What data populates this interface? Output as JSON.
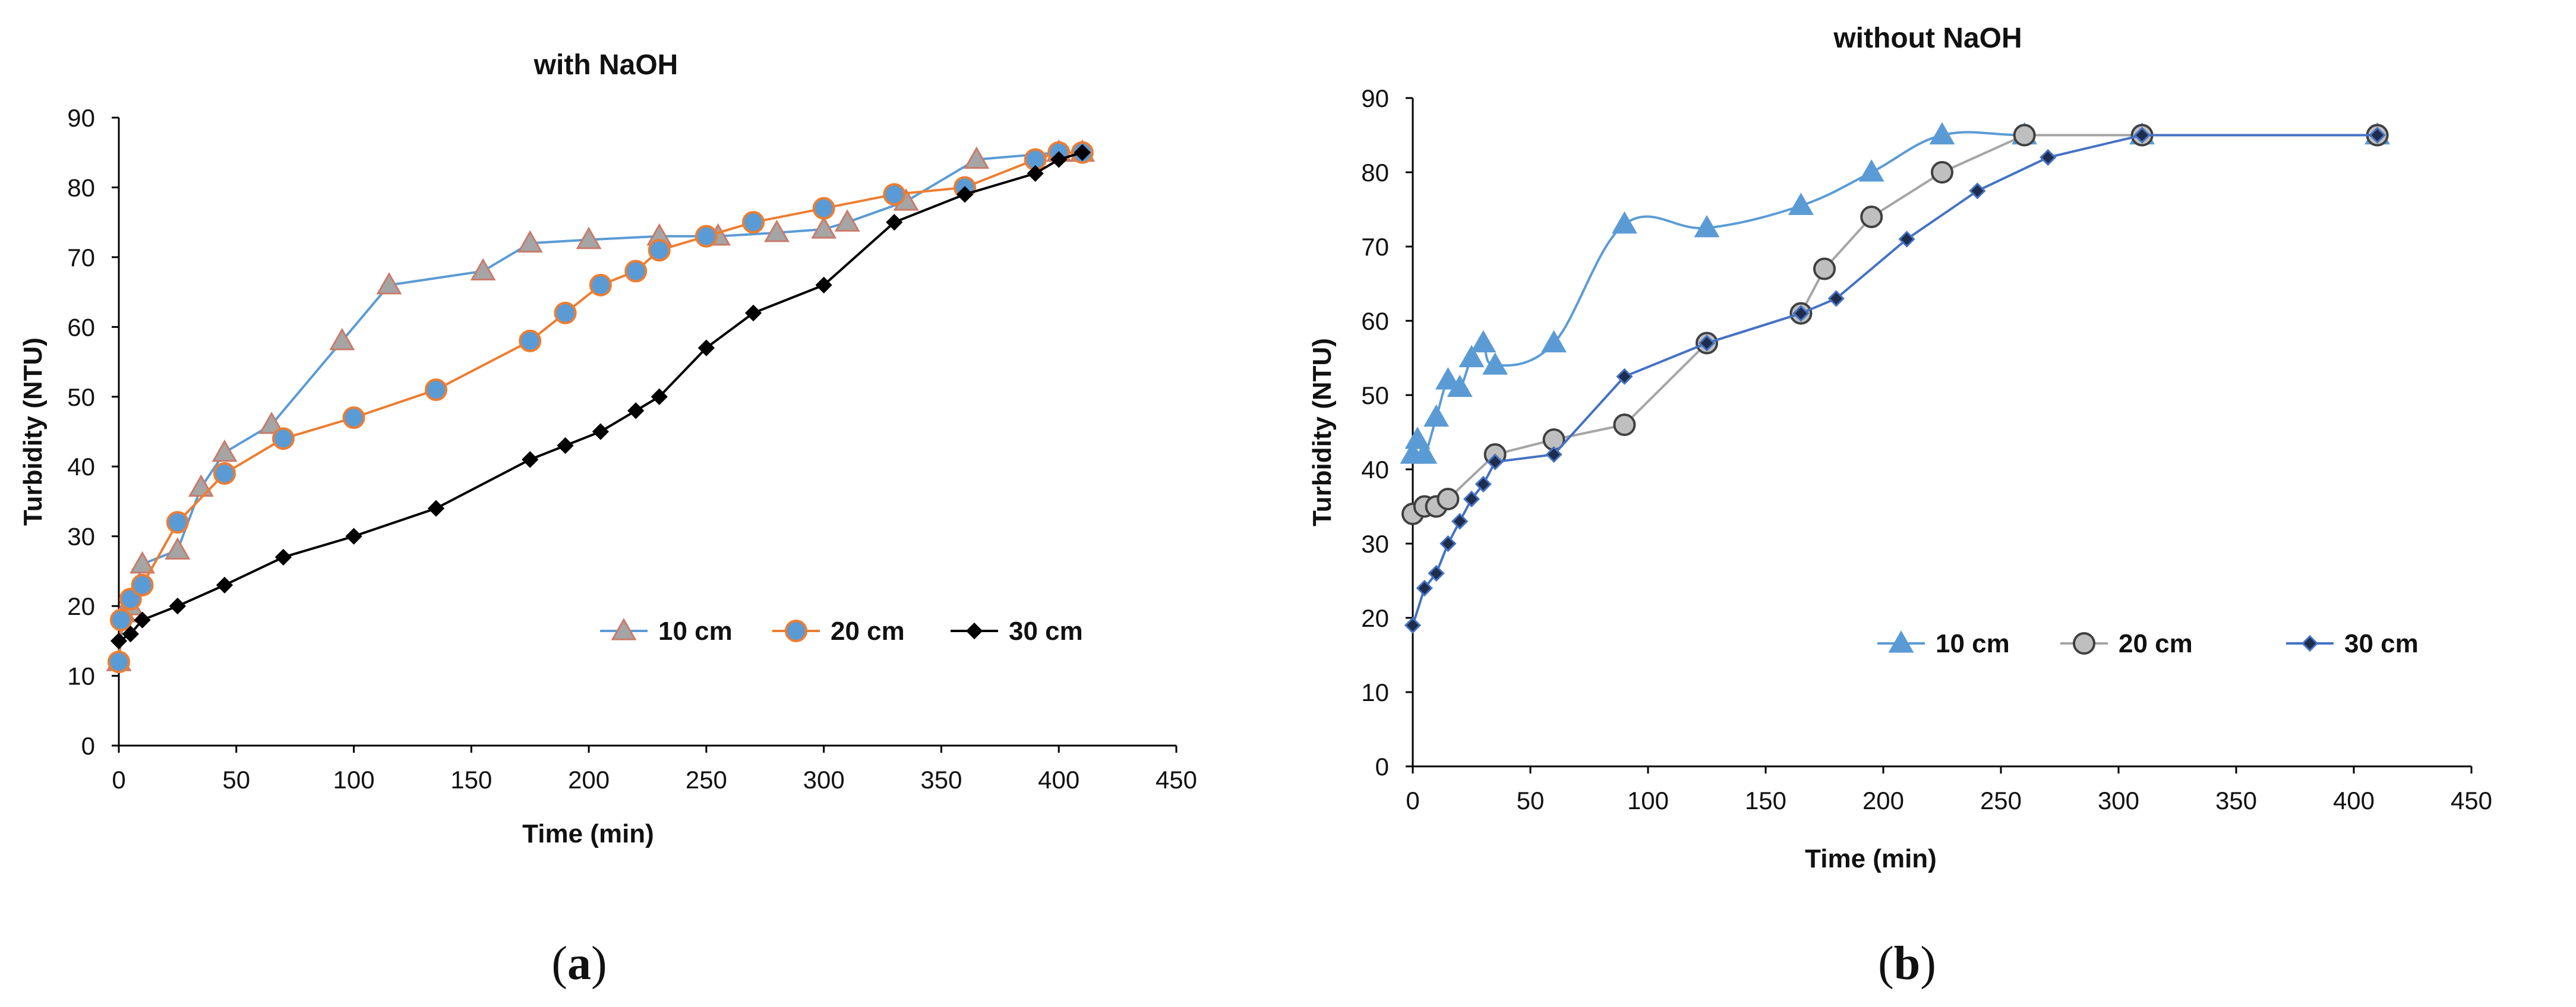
{
  "chart_data": [
    {
      "type": "line",
      "title": "with NaOH",
      "xlabel": "Time (min)",
      "ylabel": "Turbidity (NTU)",
      "xlim": [
        0,
        450
      ],
      "ylim": [
        0,
        90
      ],
      "xticks": [
        0,
        50,
        100,
        150,
        200,
        250,
        300,
        350,
        400,
        450
      ],
      "yticks": [
        0,
        10,
        20,
        30,
        40,
        50,
        60,
        70,
        80,
        90
      ],
      "grid": false,
      "legend": "inside-right",
      "caption_open": "(",
      "caption_letter": "a",
      "caption_close": ")",
      "series": [
        {
          "name": "10 cm",
          "marker": "triangle",
          "line_color": "#5b9bd5",
          "marker_color": "#a5a5a5",
          "marker_edge": "#c97b6b",
          "x": [
            0,
            2,
            5,
            10,
            25,
            35,
            45,
            65,
            95,
            115,
            155,
            175,
            200,
            230,
            255,
            280,
            300,
            310,
            335,
            365,
            400,
            410
          ],
          "y": [
            12,
            19,
            20,
            26,
            28,
            37,
            42,
            46,
            58,
            66,
            68,
            72,
            72.5,
            73,
            73,
            73.5,
            74,
            75,
            78,
            84,
            85,
            85
          ]
        },
        {
          "name": "20 cm",
          "marker": "circle",
          "line_color": "#ed7d31",
          "marker_color": "#5b9bd5",
          "marker_edge": "#ed7d31",
          "x": [
            0,
            1,
            5,
            10,
            25,
            45,
            70,
            100,
            135,
            175,
            190,
            205,
            220,
            230,
            250,
            270,
            300,
            330,
            360,
            390,
            400,
            410
          ],
          "y": [
            12,
            18,
            21,
            23,
            32,
            39,
            44,
            47,
            51,
            58,
            62,
            66,
            68,
            71,
            73,
            75,
            77,
            79,
            80,
            84,
            85,
            85
          ]
        },
        {
          "name": "30 cm",
          "marker": "diamond",
          "line_color": "#000000",
          "marker_color": "#000000",
          "marker_edge": "#000000",
          "x": [
            0,
            5,
            10,
            25,
            45,
            70,
            100,
            135,
            175,
            190,
            205,
            220,
            230,
            250,
            270,
            300,
            330,
            360,
            390,
            400,
            410
          ],
          "y": [
            15,
            16,
            18,
            20,
            23,
            27,
            30,
            34,
            41,
            43,
            45,
            48,
            50,
            57,
            62,
            66,
            75,
            79,
            82,
            84,
            85
          ]
        }
      ]
    },
    {
      "type": "line",
      "title": "without NaOH",
      "xlabel": "Time (min)",
      "ylabel": "Turbidity (NTU)",
      "xlim": [
        0,
        450
      ],
      "ylim": [
        0,
        90
      ],
      "xticks": [
        0,
        50,
        100,
        150,
        200,
        250,
        300,
        350,
        400,
        450
      ],
      "yticks": [
        0,
        10,
        20,
        30,
        40,
        50,
        60,
        70,
        80,
        90
      ],
      "grid": false,
      "legend": "bottom-inside",
      "caption_open": "(",
      "caption_letter": "b",
      "caption_close": ")",
      "series": [
        {
          "name": "10 cm",
          "marker": "triangle",
          "line_color": "#5b9bd5",
          "marker_color": "#5b9bd5",
          "marker_edge": "#5b9bd5",
          "smooth": true,
          "x": [
            0,
            2,
            5,
            10,
            15,
            20,
            25,
            30,
            35,
            60,
            90,
            125,
            165,
            195,
            225,
            260,
            310,
            410
          ],
          "y": [
            42,
            44,
            42,
            47,
            52,
            51,
            55,
            57,
            54,
            57,
            73,
            72.5,
            75.5,
            80,
            85,
            85,
            85,
            85
          ]
        },
        {
          "name": "20 cm",
          "marker": "circle",
          "line_color": "#a5a5a5",
          "marker_color": "#bfbfbf",
          "marker_edge": "#404040",
          "x": [
            0,
            5,
            10,
            15,
            35,
            60,
            90,
            125,
            165,
            175,
            195,
            225,
            260,
            310,
            410
          ],
          "y": [
            34,
            35,
            35,
            36,
            42,
            44,
            46,
            57,
            61,
            67,
            74,
            80,
            85,
            85,
            85
          ]
        },
        {
          "name": "30 cm",
          "marker": "diamond",
          "line_color": "#4472c4",
          "marker_color": "#1f2d4d",
          "marker_edge": "#4472c4",
          "x": [
            0,
            5,
            10,
            15,
            20,
            25,
            30,
            35,
            60,
            90,
            125,
            165,
            180,
            210,
            240,
            270,
            310,
            410
          ],
          "y": [
            19,
            24,
            26,
            30,
            33,
            36,
            38,
            41,
            42,
            52.5,
            57,
            61,
            63,
            71,
            77.5,
            82,
            85,
            85
          ]
        }
      ]
    }
  ]
}
